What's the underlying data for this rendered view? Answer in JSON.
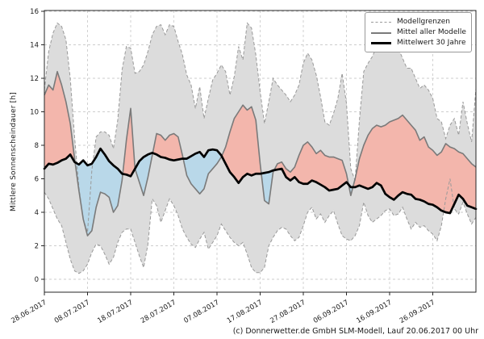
{
  "footer": "(c) Donnerwetter.de GmbH SLM-Modell, Lauf 20.06.2017 00 Uhr",
  "legend": {
    "entries": [
      {
        "label": "Modellgrenzen",
        "style": "dashed"
      },
      {
        "label": "Mittel aller Modelle",
        "style": "gray"
      },
      {
        "label": "Mittelwert 30 Jahre",
        "style": "black"
      }
    ]
  },
  "chart_data": {
    "type": "line",
    "title": "",
    "xlabel": "",
    "ylabel": "Mittlere Sonnenscheindauer [h]",
    "ylim": [
      -0.8,
      16.05
    ],
    "y_ticks": [
      0,
      2,
      4,
      6,
      8,
      10,
      12,
      14,
      16
    ],
    "x_tick_days": [
      0,
      10,
      20,
      30,
      40,
      50,
      60,
      70,
      80,
      90
    ],
    "x_tick_labels": [
      "28.06.2017",
      "08.07.2017",
      "18.07.2017",
      "28.07.2017",
      "07.08.2017",
      "17.08.2017",
      "27.08.2017",
      "06.09.2017",
      "16.09.2017",
      "26.09.2017"
    ],
    "x_total_days": 100,
    "grid": "dashed",
    "legend_position": "top-right",
    "colors": {
      "envelope_fill": "#dcdcdc",
      "bound_dashes": "#999999",
      "model_mean": "#7a7a7a",
      "climate_mean": "#000000",
      "above_fill": "#f3b6ac",
      "below_fill": "#b9d8e9",
      "grid": "#cdcdcd",
      "spine": "#262626"
    },
    "series": [
      {
        "name": "Modellgrenzen oben",
        "style": "dashed",
        "values": [
          11.3,
          13.6,
          14.7,
          15.3,
          15.1,
          14.3,
          12.0,
          8.5,
          5.5,
          3.6,
          2.8,
          6.5,
          8.5,
          8.8,
          8.8,
          8.6,
          7.8,
          9.5,
          12.5,
          13.9,
          13.8,
          12.3,
          12.4,
          12.8,
          13.6,
          14.6,
          15.1,
          15.2,
          14.6,
          15.2,
          15.1,
          14.2,
          13.4,
          12.2,
          11.6,
          10.2,
          11.5,
          9.6,
          10.8,
          11.9,
          12.3,
          12.8,
          12.4,
          11.0,
          12.1,
          13.9,
          13.1,
          15.3,
          15.0,
          13.4,
          11.2,
          9.3,
          10.6,
          12.0,
          11.6,
          11.3,
          11.0,
          10.6,
          11.0,
          11.6,
          12.9,
          13.5,
          13.1,
          12.2,
          10.9,
          9.4,
          9.2,
          9.9,
          10.8,
          12.3,
          10.5,
          6.6,
          5.9,
          9.5,
          12.4,
          12.9,
          13.3,
          13.9,
          14.0,
          14.1,
          13.9,
          13.6,
          13.8,
          13.2,
          12.6,
          12.6,
          12.0,
          11.4,
          11.6,
          11.3,
          10.8,
          9.6,
          9.4,
          8.4,
          9.2,
          9.6,
          8.6,
          10.6,
          9.3,
          8.2,
          11.4
        ]
      },
      {
        "name": "Modellgrenzen unten",
        "style": "dashed",
        "values": [
          5.2,
          4.8,
          4.2,
          3.6,
          3.2,
          2.2,
          1.2,
          0.5,
          0.35,
          0.5,
          0.9,
          1.6,
          2.1,
          2.0,
          1.5,
          0.9,
          1.3,
          2.2,
          2.8,
          3.0,
          3.0,
          2.2,
          1.4,
          0.7,
          2.1,
          4.8,
          4.4,
          3.4,
          4.1,
          4.8,
          4.4,
          3.8,
          3.0,
          2.5,
          2.1,
          1.9,
          2.4,
          2.8,
          1.8,
          2.2,
          2.6,
          3.3,
          2.9,
          2.5,
          2.2,
          2.0,
          2.2,
          1.5,
          0.7,
          0.4,
          0.4,
          0.7,
          2.0,
          2.5,
          2.9,
          3.1,
          3.0,
          2.6,
          2.3,
          2.5,
          3.2,
          4.0,
          4.3,
          3.6,
          3.9,
          3.4,
          3.8,
          4.1,
          3.3,
          2.6,
          2.4,
          2.3,
          2.6,
          3.2,
          4.6,
          3.8,
          3.4,
          3.6,
          3.8,
          4.1,
          4.2,
          3.8,
          3.9,
          4.3,
          3.6,
          3.0,
          3.4,
          3.1,
          3.2,
          2.9,
          2.7,
          2.3,
          3.2,
          4.8,
          6.0,
          4.2,
          3.9,
          4.6,
          3.9,
          3.3,
          3.7
        ]
      },
      {
        "name": "Mittel aller Modelle",
        "style": "solid",
        "values": [
          11.0,
          11.6,
          11.3,
          12.4,
          11.6,
          10.6,
          9.3,
          7.2,
          5.3,
          3.6,
          2.6,
          2.9,
          4.3,
          5.2,
          5.1,
          4.9,
          4.0,
          4.4,
          5.9,
          8.3,
          10.2,
          6.6,
          5.8,
          5.0,
          6.1,
          7.4,
          8.7,
          8.6,
          8.3,
          8.6,
          8.7,
          8.5,
          7.4,
          6.2,
          5.7,
          5.4,
          5.1,
          5.4,
          6.3,
          6.6,
          6.9,
          7.3,
          7.9,
          8.8,
          9.6,
          10.0,
          10.4,
          10.1,
          10.3,
          9.5,
          6.9,
          4.7,
          4.5,
          6.4,
          6.9,
          7.0,
          6.6,
          6.4,
          6.7,
          7.4,
          8.0,
          8.2,
          7.9,
          7.5,
          7.7,
          7.4,
          7.3,
          7.3,
          7.2,
          7.1,
          6.3,
          5.0,
          6.0,
          7.2,
          8.0,
          8.6,
          9.0,
          9.2,
          9.1,
          9.2,
          9.4,
          9.5,
          9.6,
          9.8,
          9.5,
          9.2,
          8.9,
          8.3,
          8.5,
          7.9,
          7.7,
          7.4,
          7.6,
          8.1,
          7.9,
          7.8,
          7.6,
          7.5,
          7.2,
          6.9,
          6.7
        ]
      },
      {
        "name": "Mittelwert 30 Jahre",
        "style": "solid-bold",
        "values": [
          6.6,
          6.9,
          6.85,
          6.95,
          7.1,
          7.2,
          7.45,
          7.0,
          6.85,
          7.1,
          6.8,
          6.9,
          7.3,
          7.8,
          7.45,
          7.05,
          6.8,
          6.6,
          6.3,
          6.25,
          6.15,
          6.6,
          7.05,
          7.3,
          7.45,
          7.55,
          7.45,
          7.3,
          7.25,
          7.15,
          7.1,
          7.15,
          7.2,
          7.2,
          7.35,
          7.5,
          7.6,
          7.3,
          7.7,
          7.75,
          7.7,
          7.4,
          6.9,
          6.4,
          6.1,
          5.75,
          6.1,
          6.3,
          6.2,
          6.3,
          6.3,
          6.35,
          6.4,
          6.5,
          6.55,
          6.6,
          6.1,
          5.9,
          6.1,
          5.8,
          5.7,
          5.7,
          5.9,
          5.8,
          5.65,
          5.5,
          5.3,
          5.35,
          5.4,
          5.6,
          5.8,
          5.5,
          5.5,
          5.6,
          5.5,
          5.4,
          5.5,
          5.75,
          5.6,
          5.1,
          4.9,
          4.75,
          5.0,
          5.2,
          5.1,
          5.05,
          4.8,
          4.75,
          4.65,
          4.5,
          4.45,
          4.3,
          4.1,
          4.0,
          3.95,
          4.5,
          5.05,
          4.8,
          4.4,
          4.3,
          4.2
        ]
      }
    ]
  }
}
